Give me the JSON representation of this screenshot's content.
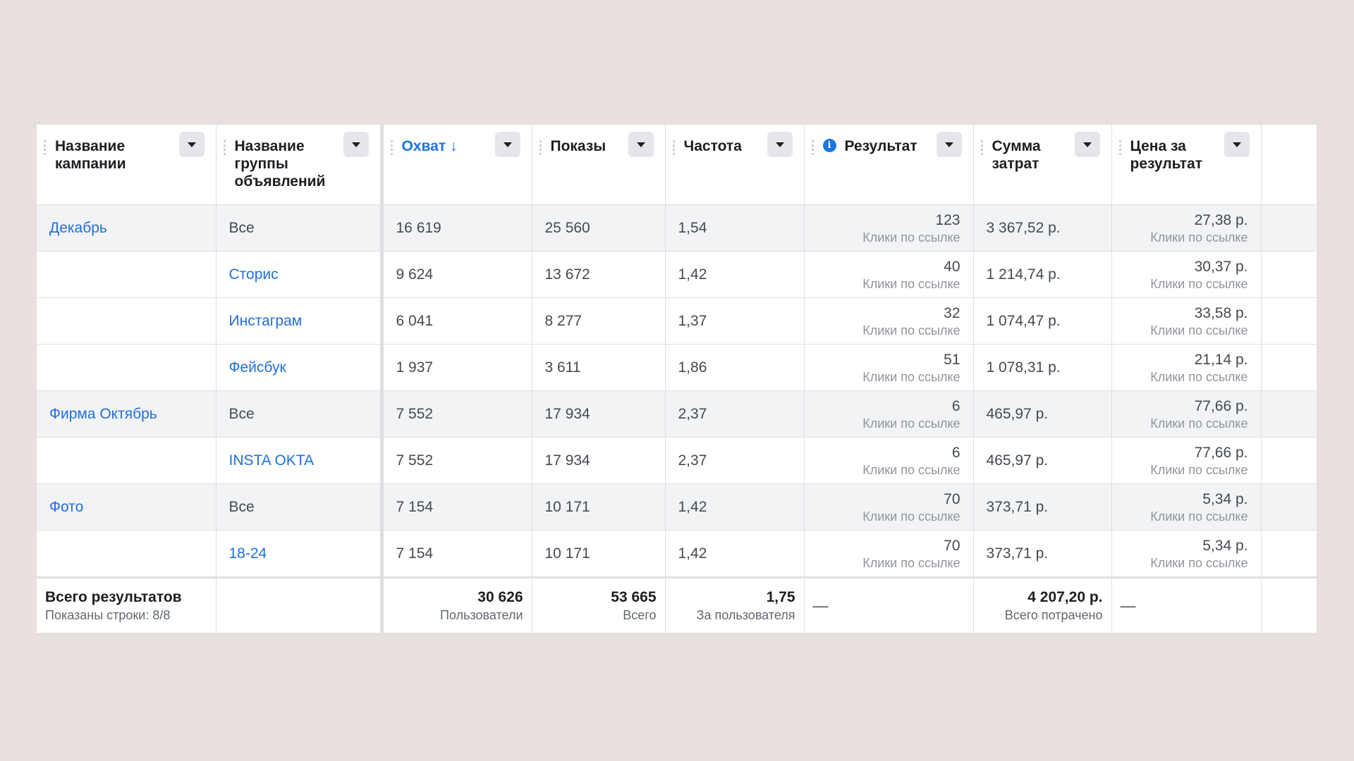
{
  "columns": [
    {
      "label": "Название кампании",
      "has_info": false,
      "sorted": false
    },
    {
      "label": "Название группы объявлений",
      "has_info": false,
      "sorted": false
    },
    {
      "label": "Охват ↓",
      "has_info": false,
      "sorted": true
    },
    {
      "label": "Показы",
      "has_info": false,
      "sorted": false
    },
    {
      "label": "Частота",
      "has_info": false,
      "sorted": false
    },
    {
      "label": "Результат",
      "has_info": true,
      "sorted": false
    },
    {
      "label": "Сумма затрат",
      "has_info": false,
      "sorted": false
    },
    {
      "label": "Цена за результат",
      "has_info": false,
      "sorted": false
    }
  ],
  "rows": [
    {
      "campaign": "Декабрь",
      "adset": "Все",
      "adset_link": false,
      "reach": "16 619",
      "impressions": "25 560",
      "frequency": "1,54",
      "result": "123",
      "result_type": "Клики по ссылке",
      "spend": "3 367,52 р.",
      "cost": "27,38 р.",
      "cost_type": "Клики по ссылке",
      "gray": true
    },
    {
      "campaign": "",
      "adset": "Сторис",
      "adset_link": true,
      "reach": "9 624",
      "impressions": "13 672",
      "frequency": "1,42",
      "result": "40",
      "result_type": "Клики по ссылке",
      "spend": "1 214,74 р.",
      "cost": "30,37 р.",
      "cost_type": "Клики по ссылке",
      "gray": false
    },
    {
      "campaign": "",
      "adset": "Инстаграм",
      "adset_link": true,
      "reach": "6 041",
      "impressions": "8 277",
      "frequency": "1,37",
      "result": "32",
      "result_type": "Клики по ссылке",
      "spend": "1 074,47 р.",
      "cost": "33,58 р.",
      "cost_type": "Клики по ссылке",
      "gray": false
    },
    {
      "campaign": "",
      "adset": "Фейсбук",
      "adset_link": true,
      "reach": "1 937",
      "impressions": "3 611",
      "frequency": "1,86",
      "result": "51",
      "result_type": "Клики по ссылке",
      "spend": "1 078,31 р.",
      "cost": "21,14 р.",
      "cost_type": "Клики по ссылке",
      "gray": false
    },
    {
      "campaign": "Фирма Октябрь",
      "adset": "Все",
      "adset_link": false,
      "reach": "7 552",
      "impressions": "17 934",
      "frequency": "2,37",
      "result": "6",
      "result_type": "Клики по ссылке",
      "spend": "465,97 р.",
      "cost": "77,66 р.",
      "cost_type": "Клики по ссылке",
      "gray": true
    },
    {
      "campaign": "",
      "adset": "INSTA OKTA",
      "adset_link": true,
      "reach": "7 552",
      "impressions": "17 934",
      "frequency": "2,37",
      "result": "6",
      "result_type": "Клики по ссылке",
      "spend": "465,97 р.",
      "cost": "77,66 р.",
      "cost_type": "Клики по ссылке",
      "gray": false
    },
    {
      "campaign": "Фото",
      "adset": "Все",
      "adset_link": false,
      "reach": "7 154",
      "impressions": "10 171",
      "frequency": "1,42",
      "result": "70",
      "result_type": "Клики по ссылке",
      "spend": "373,71 р.",
      "cost": "5,34 р.",
      "cost_type": "Клики по ссылке",
      "gray": true
    },
    {
      "campaign": "",
      "adset": "18-24",
      "adset_link": true,
      "reach": "7 154",
      "impressions": "10 171",
      "frequency": "1,42",
      "result": "70",
      "result_type": "Клики по ссылке",
      "spend": "373,71 р.",
      "cost": "5,34 р.",
      "cost_type": "Клики по ссылке",
      "gray": false
    }
  ],
  "totals": {
    "label": "Всего результатов",
    "rows_shown": "Показаны строки: 8/8",
    "reach": "30 626",
    "reach_sub": "Пользователи",
    "impressions": "53 665",
    "impressions_sub": "Всего",
    "frequency": "1,75",
    "frequency_sub": "За пользователя",
    "result": "—",
    "spend": "4 207,20 р.",
    "spend_sub": "Всего потрачено",
    "cost": "—"
  },
  "colors": {
    "link": "#216fdb",
    "sorted": "#1b74e4",
    "page_bg": "#e8dfdf"
  }
}
